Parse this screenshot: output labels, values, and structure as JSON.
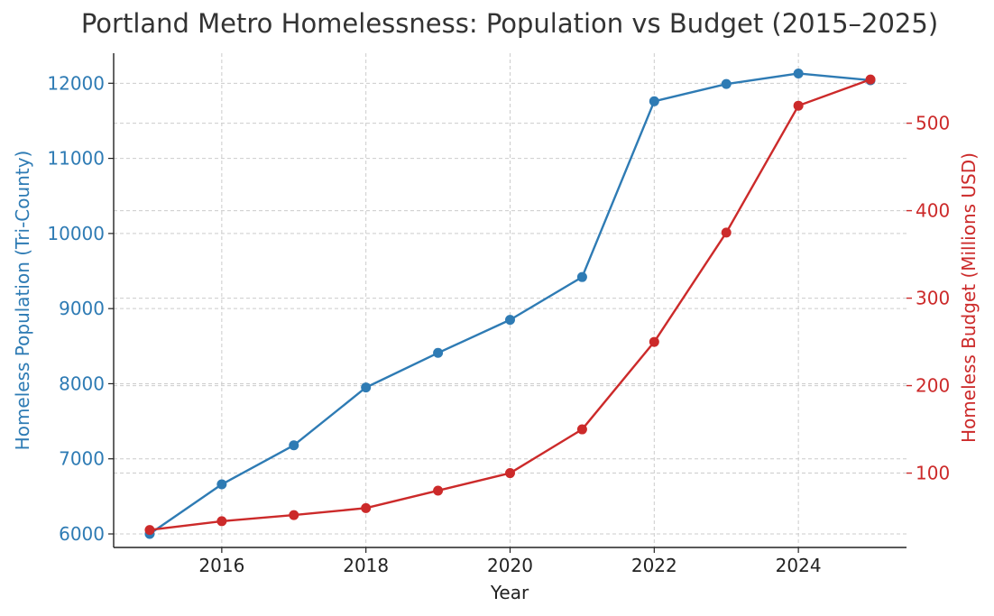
{
  "chart_data": {
    "type": "line",
    "title": "Portland Metro Homelessness: Population vs Budget (2015–2025)",
    "xlabel": "Year",
    "ylabel_left": "Homeless Population (Tri-County)",
    "ylabel_right": "Homeless Budget (Millions USD)",
    "x": [
      2015,
      2016,
      2017,
      2018,
      2019,
      2020,
      2021,
      2022,
      2023,
      2024,
      2025
    ],
    "x_ticks": [
      2016,
      2018,
      2020,
      2022,
      2024
    ],
    "xlim": [
      2014.5,
      2025.5
    ],
    "ylim_left": [
      5820,
      12400
    ],
    "y_ticks_left": [
      6000,
      7000,
      8000,
      9000,
      10000,
      11000,
      12000
    ],
    "ylim_right": [
      15,
      580
    ],
    "y_ticks_right": [
      100,
      200,
      300,
      400,
      500
    ],
    "grid": true,
    "series": [
      {
        "axis": "left",
        "color": "#2e7bb4",
        "values": [
          6000,
          6660,
          7180,
          7950,
          8410,
          8850,
          9420,
          11760,
          11990,
          12130,
          12040
        ]
      },
      {
        "axis": "right",
        "color": "#cc2a2a",
        "values": [
          35,
          45,
          52,
          60,
          80,
          100,
          150,
          250,
          375,
          520,
          550
        ]
      }
    ]
  }
}
